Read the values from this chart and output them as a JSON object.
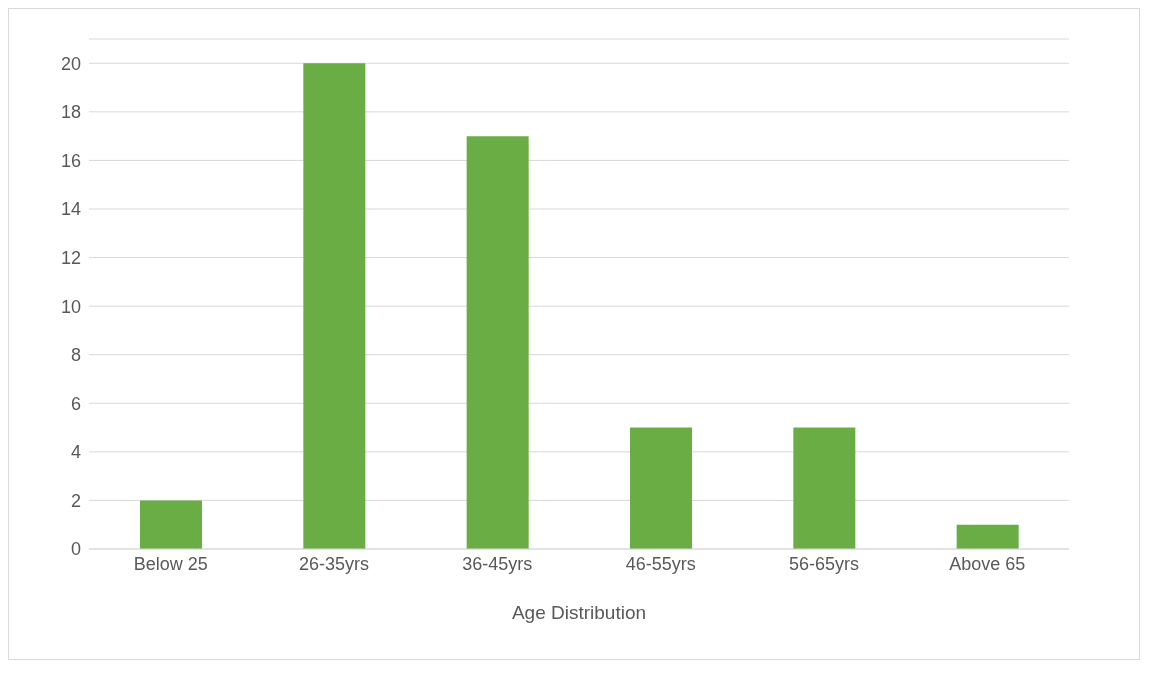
{
  "chart_data": {
    "type": "bar",
    "xlabel": "Age Distribution",
    "categories": [
      "Below 25",
      "26-35yrs",
      "36-45yrs",
      "46-55yrs",
      "56-65yrs",
      "Above 65"
    ],
    "values": [
      2,
      20,
      17,
      5,
      5,
      1
    ],
    "color": "#6aad45",
    "ylim": [
      0,
      21
    ],
    "yticks": [
      0,
      2,
      4,
      6,
      8,
      10,
      12,
      14,
      16,
      18,
      20
    ],
    "grid": "y"
  }
}
